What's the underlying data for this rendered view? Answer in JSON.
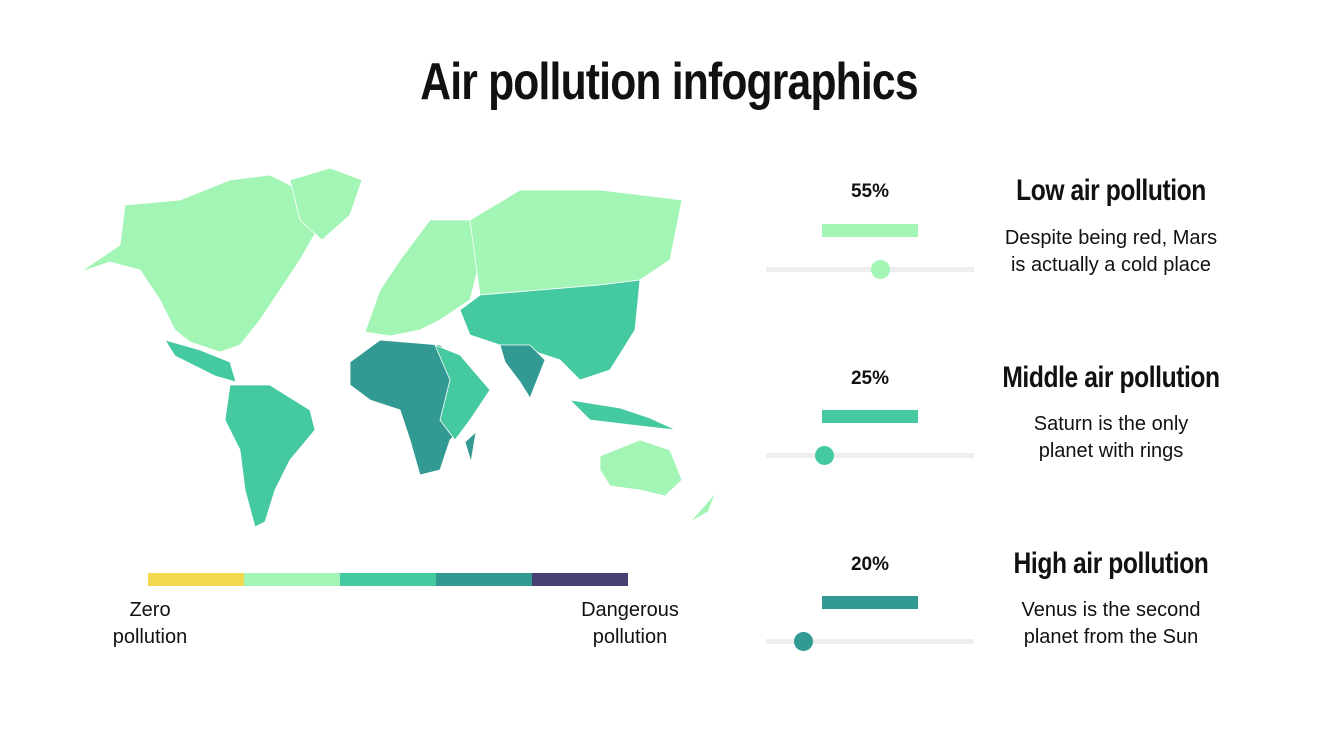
{
  "title": "Air pollution infographics",
  "colors": {
    "zero": "#F2D84E",
    "low": "#A2F5B5",
    "middle": "#45C9A0",
    "high": "#339A93",
    "dangerous": "#4A3F72",
    "track": "#EEEEEE"
  },
  "scale": {
    "min_label": "Zero pollution",
    "max_label": "Dangerous pollution"
  },
  "levels": [
    {
      "percent": "55%",
      "value": 55,
      "heading": "Low air pollution",
      "desc_line1": "Despite being red, Mars",
      "desc_line2": "is actually a cold place",
      "color": "#A2F5B5"
    },
    {
      "percent": "25%",
      "value": 25,
      "heading": "Middle air pollution",
      "desc_line1": "Saturn is the only",
      "desc_line2": "planet with rings",
      "color": "#45C9A0"
    },
    {
      "percent": "20%",
      "value": 20,
      "heading": "High air pollution",
      "desc_line1": "Venus is the second",
      "desc_line2": "planet from the Sun",
      "color": "#339A93"
    }
  ]
}
